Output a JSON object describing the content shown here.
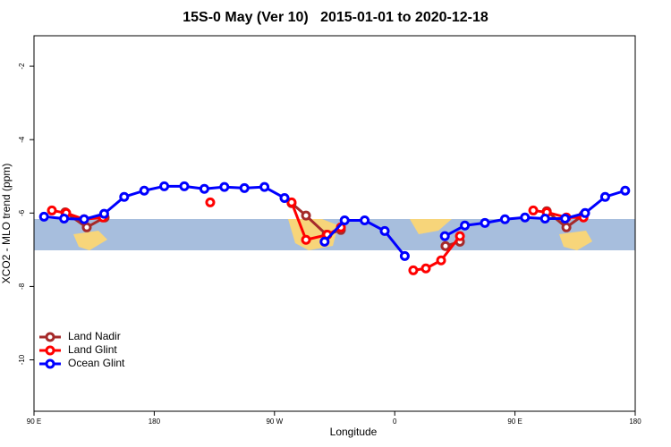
{
  "chart_data": {
    "type": "line",
    "title": "15S-0 May (Ver 10)   2015-01-01 to 2020-12-18",
    "xlabel": "Longitude",
    "ylabel": "XCO2 - MLO trend (ppm)",
    "xlim": [
      90,
      540
    ],
    "ylim": [
      -11.4,
      -1.17
    ],
    "xticks": [
      {
        "value": 90,
        "label": "90 E"
      },
      {
        "value": 180,
        "label": "180"
      },
      {
        "value": 270,
        "label": "90 W"
      },
      {
        "value": 360,
        "label": "0"
      },
      {
        "value": 450,
        "label": "90 E"
      },
      {
        "value": 540,
        "label": "180"
      }
    ],
    "yticks": [
      -10,
      -8,
      -6,
      -4,
      -2
    ],
    "legend": "bottom left",
    "series": [
      {
        "name": "Land Nadir",
        "color": "#a52a2a",
        "x": [
          113.4,
          129.5,
          142.9,
          null,
          282.8,
          293.6,
          309.0,
          319.7,
          null,
          398,
          408.8,
          null,
          473.8,
          488.5,
          501.3
        ],
        "values": [
          -5.98,
          -6.39,
          -6.12,
          null,
          -5.73,
          -6.07,
          -6.59,
          -6.46,
          null,
          -6.9,
          -6.78,
          null,
          -5.95,
          -6.39,
          -6.05
        ]
      },
      {
        "name": "Land Glint",
        "color": "#ff0000",
        "x": [
          103.4,
          114.1,
          127.5,
          141.6,
          null,
          221.9,
          null,
          282.8,
          293.6,
          309.6,
          319.7,
          null,
          373.9,
          383.3,
          394.7,
          408.8,
          null,
          463.7,
          473.8,
          488.5,
          501.3
        ],
        "values": [
          -5.93,
          -6.0,
          -6.17,
          -6.12,
          null,
          -5.71,
          null,
          -5.71,
          -6.73,
          -6.59,
          -6.39,
          null,
          -7.56,
          -7.51,
          -7.29,
          -6.63,
          null,
          -5.93,
          -5.98,
          -6.12,
          -6.12
        ]
      },
      {
        "name": "Ocean Glint",
        "color": "#0000ff",
        "x": [
          97.5,
          112.5,
          127.5,
          142.5,
          157.5,
          172.5,
          187.5,
          202.5,
          217.5,
          232.5,
          247.5,
          262.5,
          277.5,
          292.5,
          307.5,
          322.5,
          337.5,
          352.5,
          367.5,
          382.5,
          397.5,
          412.5,
          427.5,
          442.5,
          457.5,
          472.5,
          487.5,
          502.5,
          517.5,
          532.5
        ],
        "values": [
          -6.1,
          -6.15,
          -6.17,
          -6.02,
          -5.56,
          -5.39,
          -5.27,
          -5.27,
          -5.34,
          -5.29,
          -5.32,
          -5.29,
          -5.59,
          null,
          -6.78,
          -6.2,
          -6.2,
          -6.49,
          -7.17,
          null,
          -6.63,
          -6.34,
          -6.27,
          -6.17,
          -6.12,
          -6.15,
          -6.15,
          -6.0,
          -5.56,
          -5.39
        ]
      }
    ]
  }
}
